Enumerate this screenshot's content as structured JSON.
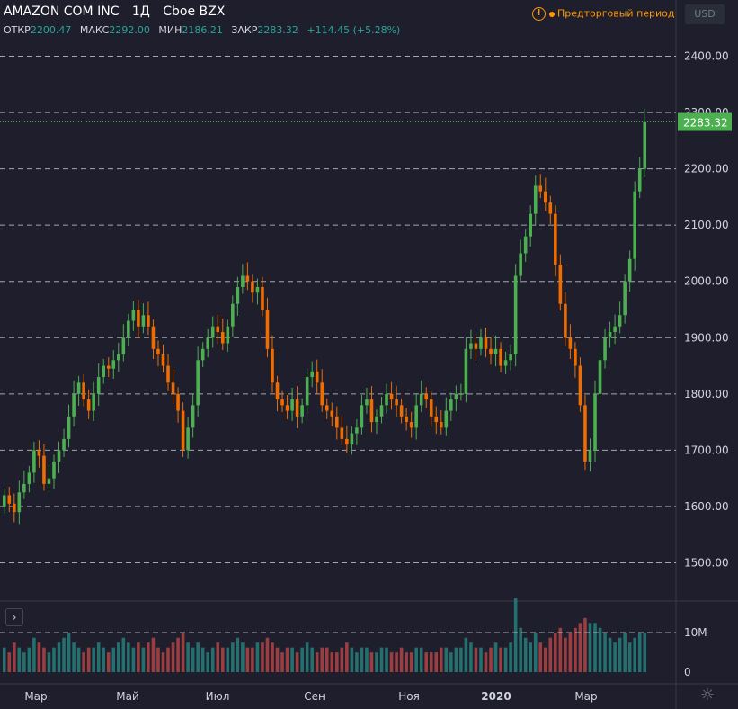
{
  "header": {
    "symbol": "AMAZON COM INC",
    "interval": "1Д",
    "exchange": "Cboe BZX",
    "currency": "USD",
    "premarket_label": "Предторговый период"
  },
  "ohlc": {
    "open_label": "ОТКР",
    "open": "2200.47",
    "high_label": "МАКС",
    "high": "2292.00",
    "low_label": "МИН",
    "low": "2186.21",
    "close_label": "ЗАКР",
    "close": "2283.32",
    "change": "+114.45 (+5.28%)"
  },
  "colors": {
    "background": "#1e1e2d",
    "up": "#4caf50",
    "down": "#ef6c00",
    "grid": "#d1d4dc",
    "axis_text": "#d1d4dc",
    "price_badge": "#4caf50",
    "volume_up": "#26a69a",
    "volume_down": "#ef5350"
  },
  "chart_data": {
    "type": "candlestick",
    "y_axis": {
      "ticks": [
        "1500.00",
        "1600.00",
        "1700.00",
        "1800.00",
        "1900.00",
        "2000.00",
        "2100.00",
        "2200.00",
        "2300.00",
        "2400.00"
      ],
      "range": [
        1432,
        2500
      ]
    },
    "x_axis": {
      "ticks": [
        "Мар",
        "Май",
        "Июл",
        "Сен",
        "Ноя",
        "2020",
        "Мар"
      ]
    },
    "last_price": 2283.32,
    "last_price_label": "2283.32",
    "volume_axis": {
      "ticks": [
        "10M",
        "0"
      ],
      "max": 15
    },
    "closes": [
      1620,
      1605,
      1590,
      1625,
      1640,
      1660,
      1700,
      1690,
      1640,
      1650,
      1680,
      1700,
      1720,
      1760,
      1800,
      1820,
      1790,
      1770,
      1800,
      1830,
      1850,
      1845,
      1860,
      1870,
      1900,
      1930,
      1950,
      1920,
      1940,
      1920,
      1880,
      1870,
      1850,
      1820,
      1800,
      1770,
      1700,
      1740,
      1780,
      1860,
      1880,
      1900,
      1920,
      1910,
      1890,
      1920,
      1960,
      1990,
      2010,
      2000,
      1980,
      1990,
      1950,
      1880,
      1820,
      1790,
      1780,
      1770,
      1790,
      1760,
      1780,
      1830,
      1840,
      1820,
      1780,
      1770,
      1760,
      1740,
      1720,
      1710,
      1730,
      1740,
      1780,
      1790,
      1750,
      1760,
      1780,
      1800,
      1790,
      1780,
      1760,
      1750,
      1740,
      1780,
      1800,
      1790,
      1760,
      1750,
      1740,
      1770,
      1790,
      1800,
      1800,
      1880,
      1890,
      1880,
      1900,
      1880,
      1870,
      1880,
      1850,
      1860,
      1870,
      2010,
      2050,
      2080,
      2120,
      2170,
      2160,
      2140,
      2120,
      2030,
      1960,
      1900,
      1880,
      1850,
      1780,
      1680,
      1700,
      1800,
      1860,
      1900,
      1910,
      1920,
      1940,
      2000,
      2040,
      2160,
      2200,
      2283
    ],
    "opens": [
      1600,
      1620,
      1605,
      1590,
      1625,
      1640,
      1660,
      1700,
      1690,
      1640,
      1650,
      1680,
      1700,
      1720,
      1760,
      1800,
      1820,
      1790,
      1770,
      1800,
      1830,
      1850,
      1845,
      1860,
      1870,
      1900,
      1930,
      1950,
      1920,
      1940,
      1920,
      1880,
      1870,
      1850,
      1820,
      1800,
      1770,
      1700,
      1740,
      1780,
      1860,
      1880,
      1900,
      1920,
      1910,
      1890,
      1920,
      1960,
      1990,
      2010,
      2000,
      1980,
      1990,
      1950,
      1880,
      1820,
      1790,
      1780,
      1770,
      1790,
      1760,
      1780,
      1830,
      1840,
      1820,
      1780,
      1770,
      1760,
      1740,
      1720,
      1710,
      1730,
      1740,
      1780,
      1790,
      1750,
      1760,
      1780,
      1800,
      1790,
      1780,
      1760,
      1750,
      1740,
      1780,
      1800,
      1790,
      1760,
      1750,
      1740,
      1770,
      1790,
      1800,
      1800,
      1880,
      1890,
      1880,
      1900,
      1880,
      1870,
      1880,
      1850,
      1860,
      1870,
      2010,
      2050,
      2080,
      2120,
      2170,
      2160,
      2140,
      2120,
      2030,
      1960,
      1900,
      1880,
      1850,
      1780,
      1680,
      1700,
      1800,
      1860,
      1900,
      1910,
      1920,
      1940,
      2000,
      2040,
      2160,
      2200
    ],
    "volumes": [
      5,
      4,
      6,
      5,
      4,
      5,
      7,
      6,
      5,
      4,
      5,
      6,
      7,
      8,
      6,
      5,
      4,
      5,
      5,
      6,
      5,
      4,
      5,
      6,
      7,
      6,
      5,
      6,
      5,
      6,
      7,
      5,
      4,
      5,
      6,
      7,
      8,
      6,
      5,
      6,
      5,
      4,
      5,
      6,
      5,
      5,
      6,
      7,
      6,
      5,
      5,
      6,
      6,
      7,
      6,
      5,
      4,
      5,
      5,
      4,
      5,
      6,
      5,
      4,
      5,
      5,
      4,
      4,
      5,
      6,
      5,
      4,
      5,
      5,
      4,
      4,
      5,
      5,
      4,
      4,
      5,
      4,
      4,
      5,
      5,
      4,
      4,
      4,
      5,
      5,
      4,
      5,
      5,
      7,
      6,
      5,
      5,
      4,
      5,
      6,
      5,
      5,
      6,
      15,
      9,
      7,
      6,
      8,
      6,
      5,
      7,
      8,
      9,
      7,
      8,
      9,
      10,
      11,
      10,
      10,
      9,
      8,
      7,
      6,
      7,
      8,
      6,
      7,
      8,
      8
    ]
  }
}
